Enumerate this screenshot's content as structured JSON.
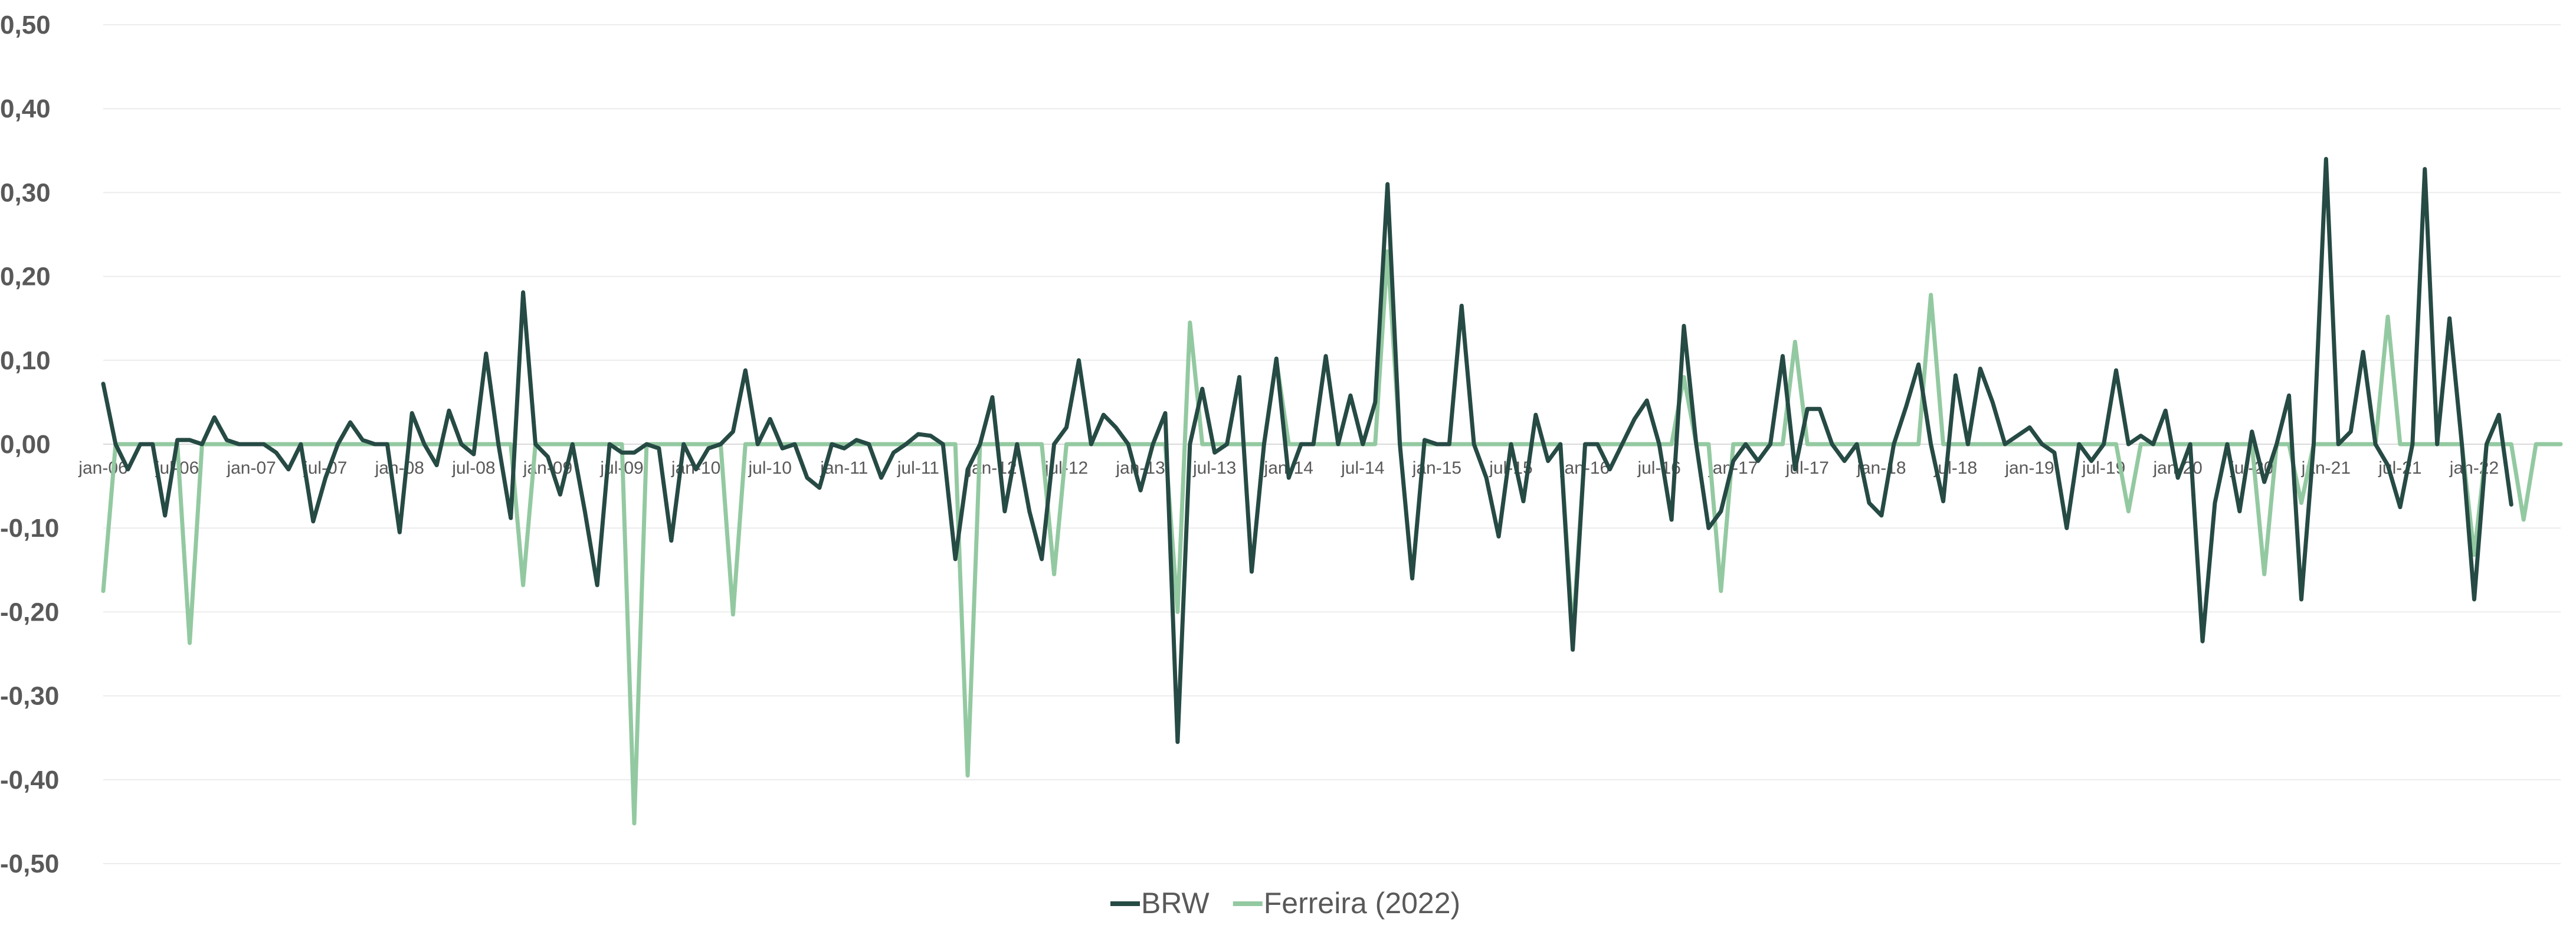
{
  "chart_data": {
    "type": "line",
    "title": "",
    "xlabel": "",
    "ylabel": "",
    "ylim": [
      -0.5,
      0.5
    ],
    "yticks": [
      "0,50",
      "0,40",
      "0,30",
      "0,20",
      "0,10",
      "0,00",
      "-0,10",
      "-0,20",
      "-0,30",
      "-0,40",
      "-0,50"
    ],
    "ytick_values": [
      0.5,
      0.4,
      0.3,
      0.2,
      0.1,
      0.0,
      -0.1,
      -0.2,
      -0.3,
      -0.4,
      -0.5
    ],
    "xtick_labels": [
      "jan-06",
      "jul-06",
      "jan-07",
      "jul-07",
      "jan-08",
      "jul-08",
      "jan-09",
      "jul-09",
      "jan-10",
      "jul-10",
      "jan-11",
      "jul-11",
      "jan-12",
      "jul-12",
      "jan-13",
      "jul-13",
      "jan-14",
      "jul-14",
      "jan-15",
      "jul-15",
      "jan-16",
      "jul-16",
      "jan-17",
      "jul-17",
      "jan-18",
      "jul-18",
      "jan-19",
      "jul-19",
      "jan-20",
      "jul-20",
      "jan-21",
      "jul-21",
      "jan-22"
    ],
    "x_start": "jan-06",
    "x_end": "dec-22",
    "grid": true,
    "legend_position": "bottom-center",
    "series": [
      {
        "name": "BRW",
        "color": "#264a44",
        "values": [
          0.072,
          0.0,
          -0.03,
          0.0,
          0.0,
          -0.085,
          0.005,
          0.005,
          0.0,
          0.032,
          0.005,
          0.0,
          0.0,
          0.0,
          -0.01,
          -0.03,
          0.0,
          -0.092,
          -0.04,
          0.0,
          0.026,
          0.005,
          0.0,
          0.0,
          -0.105,
          0.037,
          0.0,
          -0.025,
          0.04,
          0.0,
          -0.012,
          0.108,
          0.0,
          -0.088,
          0.181,
          0.0,
          -0.015,
          -0.06,
          0.0,
          -0.08,
          -0.168,
          0.0,
          -0.01,
          -0.01,
          0.0,
          -0.005,
          -0.115,
          0.0,
          -0.03,
          -0.005,
          0.0,
          0.015,
          0.088,
          0.0,
          0.03,
          -0.005,
          0.0,
          -0.04,
          -0.052,
          0.0,
          -0.005,
          0.005,
          0.0,
          -0.04,
          -0.01,
          0.0,
          0.012,
          0.01,
          0.0,
          -0.137,
          -0.03,
          0.0,
          0.056,
          -0.08,
          0.0,
          -0.08,
          -0.137,
          0.0,
          0.02,
          0.1,
          0.0,
          0.035,
          0.02,
          0.0,
          -0.055,
          0.0,
          0.037,
          -0.355,
          0.0,
          0.066,
          -0.01,
          0.0,
          0.08,
          -0.152,
          0.0,
          0.102,
          -0.04,
          0.0,
          0.0,
          0.105,
          0.0,
          0.058,
          0.0,
          0.05,
          0.31,
          0.0,
          -0.16,
          0.005,
          0.0,
          0.0,
          0.165,
          0.0,
          -0.04,
          -0.11,
          0.0,
          -0.068,
          0.035,
          -0.02,
          0.0,
          -0.245,
          0.0,
          0.0,
          -0.03,
          0.0,
          0.03,
          0.052,
          0.0,
          -0.09,
          0.141,
          0.0,
          -0.1,
          -0.08,
          -0.02,
          0.0,
          -0.02,
          0.0,
          0.105,
          -0.03,
          0.042,
          0.042,
          0.0,
          -0.02,
          0.0,
          -0.07,
          -0.085,
          0.0,
          0.045,
          0.095,
          0.0,
          -0.068,
          0.082,
          0.0,
          0.09,
          0.05,
          0.0,
          0.01,
          0.02,
          0.0,
          -0.01,
          -0.1,
          0.0,
          -0.02,
          0.0,
          0.088,
          0.0,
          0.01,
          0.0,
          0.04,
          -0.04,
          0.0,
          -0.235,
          -0.07,
          0.0,
          -0.08,
          0.015,
          -0.045,
          0.0,
          0.058,
          -0.185,
          0.0,
          0.34,
          0.0,
          0.015,
          0.11,
          0.0,
          -0.025,
          -0.075,
          0.0,
          0.328,
          0.0,
          0.15,
          0.0,
          -0.185,
          0.0,
          0.035,
          -0.072
        ]
      },
      {
        "name": "Ferreira (2022)",
        "color": "#93c9a1",
        "values": [
          -0.175,
          0.0,
          0.0,
          0.0,
          0.0,
          0.0,
          0.0,
          -0.237,
          0.0,
          0.0,
          0.0,
          0.0,
          0.0,
          0.0,
          0.0,
          0.0,
          0.0,
          0.0,
          0.0,
          0.0,
          0.0,
          0.0,
          0.0,
          0.0,
          0.0,
          0.0,
          0.0,
          0.0,
          0.0,
          0.0,
          0.0,
          0.0,
          0.0,
          0.0,
          -0.168,
          0.0,
          0.0,
          0.0,
          0.0,
          0.0,
          0.0,
          0.0,
          0.0,
          -0.452,
          0.0,
          0.0,
          0.0,
          0.0,
          0.0,
          0.0,
          0.0,
          -0.203,
          0.0,
          0.0,
          0.0,
          0.0,
          0.0,
          0.0,
          0.0,
          0.0,
          0.0,
          0.0,
          0.0,
          0.0,
          0.0,
          0.0,
          0.0,
          0.0,
          0.0,
          0.0,
          -0.395,
          0.0,
          0.0,
          0.0,
          0.0,
          0.0,
          0.0,
          -0.155,
          0.0,
          0.0,
          0.0,
          0.0,
          0.0,
          0.0,
          0.0,
          0.0,
          0.0,
          -0.2,
          0.145,
          0.0,
          0.0,
          0.0,
          0.0,
          0.0,
          0.0,
          0.1,
          0.0,
          0.0,
          0.0,
          0.0,
          0.0,
          0.0,
          0.0,
          0.0,
          0.23,
          0.0,
          0.0,
          0.0,
          0.0,
          0.0,
          0.0,
          0.0,
          0.0,
          0.0,
          0.0,
          0.0,
          0.0,
          0.0,
          0.0,
          -0.228,
          0.0,
          0.0,
          0.0,
          0.0,
          0.0,
          0.0,
          0.0,
          0.0,
          0.08,
          0.0,
          0.0,
          -0.175,
          0.0,
          0.0,
          0.0,
          0.0,
          0.0,
          0.122,
          0.0,
          0.0,
          0.0,
          0.0,
          0.0,
          0.0,
          0.0,
          0.0,
          0.0,
          0.0,
          0.178,
          0.0,
          0.0,
          0.0,
          0.0,
          0.0,
          0.0,
          0.0,
          0.0,
          0.0,
          0.0,
          0.0,
          0.0,
          0.0,
          0.0,
          0.0,
          -0.08,
          0.0,
          0.0,
          0.0,
          0.0,
          0.0,
          0.0,
          0.0,
          0.0,
          0.0,
          0.0,
          -0.155,
          0.0,
          0.0,
          -0.07,
          0.0,
          0.0,
          0.0,
          0.0,
          0.0,
          0.0,
          0.152,
          0.0,
          0.0,
          0.0,
          0.0,
          0.0,
          0.0,
          -0.132,
          0.0,
          0.0,
          0.0,
          -0.09,
          0.0,
          0.0,
          0.0
        ]
      }
    ]
  }
}
